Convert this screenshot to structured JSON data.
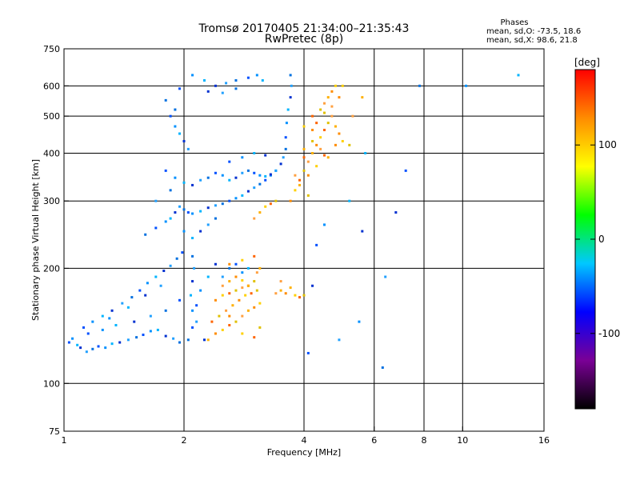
{
  "chart_data": {
    "type": "scatter",
    "title_lines": [
      "Tromsø 20170405 21:34:00–21:35:43",
      "RwPretec (8p)"
    ],
    "stats": {
      "heading": "Phases",
      "line_o": "mean, sd,O:  -73.5, 18.6",
      "line_x": "mean, sd,X:   98.6, 21.8"
    },
    "xlabel": "Frequency [MHz]",
    "ylabel": "Stationary phase Virtual Height [km]",
    "x_scale": "log",
    "y_scale": "log",
    "xlim": [
      1,
      16
    ],
    "ylim": [
      75,
      750
    ],
    "x_ticks": [
      {
        "value": 1,
        "label": "1"
      },
      {
        "value": 2,
        "label": "2"
      },
      {
        "value": 4,
        "label": "4"
      },
      {
        "value": 6,
        "label": "6"
      },
      {
        "value": 8,
        "label": "8"
      },
      {
        "value": 10,
        "label": "10"
      },
      {
        "value": 16,
        "label": "16"
      }
    ],
    "x_gridlines": [
      2,
      4,
      6,
      8,
      10
    ],
    "y_ticks": [
      {
        "value": 75,
        "label": "75"
      },
      {
        "value": 100,
        "label": "100"
      },
      {
        "value": 200,
        "label": "200"
      },
      {
        "value": 300,
        "label": "300"
      },
      {
        "value": 400,
        "label": "400"
      },
      {
        "value": 500,
        "label": "500"
      },
      {
        "value": 600,
        "label": "600"
      },
      {
        "value": 750,
        "label": "750"
      }
    ],
    "y_gridlines": [
      100,
      200,
      300,
      400,
      500,
      600
    ],
    "grid": true,
    "colorbar": {
      "label": "[deg]",
      "range": [
        -180,
        180
      ],
      "ticks": [
        {
          "value": 100,
          "label": "100"
        },
        {
          "value": 0,
          "label": "0"
        },
        {
          "value": -100,
          "label": "-100"
        }
      ],
      "colors": [
        "#000000",
        "#7a0096",
        "#0000ff",
        "#00c8ff",
        "#00ff00",
        "#ffff00",
        "#ff8c00",
        "#ff0000"
      ]
    },
    "series": [
      {
        "phase": "O",
        "points": [
          [
            1.03,
            128
          ],
          [
            1.05,
            131
          ],
          [
            1.08,
            126
          ],
          [
            1.1,
            124
          ],
          [
            1.14,
            121
          ],
          [
            1.18,
            123
          ],
          [
            1.22,
            125
          ],
          [
            1.27,
            124
          ],
          [
            1.32,
            127
          ],
          [
            1.38,
            128
          ],
          [
            1.45,
            130
          ],
          [
            1.52,
            132
          ],
          [
            1.58,
            134
          ],
          [
            1.65,
            137
          ],
          [
            1.72,
            138
          ],
          [
            1.8,
            133
          ],
          [
            1.88,
            131
          ],
          [
            1.95,
            128
          ],
          [
            1.12,
            140
          ],
          [
            1.18,
            145
          ],
          [
            1.25,
            150
          ],
          [
            1.32,
            155
          ],
          [
            1.4,
            162
          ],
          [
            1.48,
            168
          ],
          [
            1.55,
            175
          ],
          [
            1.62,
            183
          ],
          [
            1.7,
            190
          ],
          [
            1.78,
            197
          ],
          [
            1.85,
            203
          ],
          [
            1.92,
            212
          ],
          [
            1.98,
            220
          ],
          [
            1.3,
            148
          ],
          [
            1.45,
            158
          ],
          [
            1.6,
            170
          ],
          [
            1.75,
            180
          ],
          [
            2.05,
            130
          ],
          [
            2.1,
            140
          ],
          [
            2.1,
            155
          ],
          [
            2.08,
            170
          ],
          [
            2.1,
            185
          ],
          [
            2.12,
            200
          ],
          [
            2.1,
            215
          ],
          [
            2.15,
            160
          ],
          [
            2.2,
            175
          ],
          [
            2.3,
            190
          ],
          [
            2.4,
            205
          ],
          [
            2.5,
            190
          ],
          [
            2.6,
            200
          ],
          [
            2.7,
            205
          ],
          [
            2.8,
            195
          ],
          [
            2.9,
            200
          ],
          [
            2.25,
            130
          ],
          [
            2.15,
            145
          ],
          [
            1.6,
            245
          ],
          [
            1.7,
            255
          ],
          [
            1.8,
            265
          ],
          [
            1.85,
            270
          ],
          [
            1.9,
            280
          ],
          [
            1.95,
            290
          ],
          [
            2.0,
            285
          ],
          [
            2.05,
            280
          ],
          [
            2.1,
            278
          ],
          [
            2.2,
            282
          ],
          [
            2.3,
            288
          ],
          [
            2.4,
            292
          ],
          [
            2.5,
            295
          ],
          [
            2.6,
            300
          ],
          [
            2.7,
            305
          ],
          [
            2.8,
            310
          ],
          [
            2.9,
            318
          ],
          [
            3.0,
            325
          ],
          [
            3.1,
            332
          ],
          [
            3.2,
            340
          ],
          [
            3.3,
            350
          ],
          [
            3.4,
            360
          ],
          [
            3.5,
            375
          ],
          [
            3.55,
            390
          ],
          [
            3.6,
            410
          ],
          [
            3.6,
            440
          ],
          [
            3.62,
            480
          ],
          [
            3.65,
            520
          ],
          [
            3.7,
            560
          ],
          [
            3.72,
            600
          ],
          [
            3.7,
            640
          ],
          [
            1.8,
            360
          ],
          [
            1.9,
            345
          ],
          [
            2.0,
            335
          ],
          [
            2.1,
            330
          ],
          [
            2.2,
            340
          ],
          [
            2.3,
            345
          ],
          [
            2.4,
            355
          ],
          [
            2.5,
            350
          ],
          [
            2.6,
            340
          ],
          [
            2.7,
            345
          ],
          [
            2.8,
            355
          ],
          [
            2.9,
            360
          ],
          [
            3.0,
            355
          ],
          [
            3.1,
            350
          ],
          [
            3.2,
            348
          ],
          [
            3.3,
            352
          ],
          [
            3.4,
            360
          ],
          [
            1.8,
            550
          ],
          [
            1.85,
            500
          ],
          [
            1.9,
            470
          ],
          [
            1.95,
            450
          ],
          [
            2.0,
            430
          ],
          [
            2.05,
            410
          ],
          [
            1.9,
            520
          ],
          [
            1.95,
            590
          ],
          [
            2.1,
            640
          ],
          [
            2.25,
            620
          ],
          [
            2.4,
            600
          ],
          [
            2.55,
            610
          ],
          [
            2.7,
            620
          ],
          [
            2.9,
            630
          ],
          [
            3.05,
            640
          ],
          [
            3.15,
            620
          ],
          [
            2.3,
            580
          ],
          [
            2.5,
            575
          ],
          [
            2.7,
            590
          ],
          [
            1.15,
            135
          ],
          [
            1.25,
            138
          ],
          [
            1.35,
            142
          ],
          [
            1.5,
            145
          ],
          [
            1.65,
            150
          ],
          [
            1.8,
            155
          ],
          [
            1.95,
            165
          ],
          [
            2.0,
            250
          ],
          [
            2.1,
            240
          ],
          [
            2.2,
            250
          ],
          [
            2.3,
            260
          ],
          [
            2.4,
            270
          ],
          [
            2.6,
            380
          ],
          [
            2.8,
            390
          ],
          [
            3.0,
            400
          ],
          [
            3.2,
            395
          ],
          [
            1.7,
            300
          ],
          [
            1.85,
            320
          ],
          [
            4.3,
            230
          ],
          [
            4.5,
            260
          ],
          [
            5.2,
            300
          ],
          [
            5.6,
            250
          ],
          [
            6.4,
            190
          ],
          [
            7.8,
            600
          ],
          [
            7.2,
            360
          ],
          [
            10.2,
            600
          ],
          [
            13.8,
            640
          ],
          [
            4.2,
            180
          ],
          [
            4.9,
            130
          ],
          [
            6.3,
            110
          ],
          [
            4.1,
            120
          ],
          [
            5.5,
            145
          ],
          [
            5.7,
            400
          ],
          [
            6.8,
            280
          ]
        ]
      },
      {
        "phase": "X",
        "points": [
          [
            2.3,
            130
          ],
          [
            2.4,
            135
          ],
          [
            2.5,
            138
          ],
          [
            2.6,
            142
          ],
          [
            2.7,
            145
          ],
          [
            2.8,
            150
          ],
          [
            2.9,
            155
          ],
          [
            3.0,
            158
          ],
          [
            3.1,
            162
          ],
          [
            2.35,
            145
          ],
          [
            2.45,
            150
          ],
          [
            2.55,
            155
          ],
          [
            2.65,
            160
          ],
          [
            2.75,
            165
          ],
          [
            2.85,
            170
          ],
          [
            2.95,
            172
          ],
          [
            3.05,
            175
          ],
          [
            2.5,
            180
          ],
          [
            2.6,
            185
          ],
          [
            2.7,
            190
          ],
          [
            2.8,
            186
          ],
          [
            2.9,
            180
          ],
          [
            3.0,
            185
          ],
          [
            3.05,
            195
          ],
          [
            3.1,
            200
          ],
          [
            2.4,
            165
          ],
          [
            2.5,
            170
          ],
          [
            2.6,
            172
          ],
          [
            2.7,
            175
          ],
          [
            2.8,
            178
          ],
          [
            2.9,
            180
          ],
          [
            2.6,
            150
          ],
          [
            2.8,
            135
          ],
          [
            3.0,
            132
          ],
          [
            3.1,
            140
          ],
          [
            3.4,
            172
          ],
          [
            3.5,
            175
          ],
          [
            3.6,
            172
          ],
          [
            3.8,
            170
          ],
          [
            3.9,
            168
          ],
          [
            4.0,
            170
          ],
          [
            3.5,
            185
          ],
          [
            3.7,
            178
          ],
          [
            3.7,
            300
          ],
          [
            3.8,
            320
          ],
          [
            3.9,
            340
          ],
          [
            4.0,
            360
          ],
          [
            4.1,
            380
          ],
          [
            4.2,
            400
          ],
          [
            4.3,
            420
          ],
          [
            4.4,
            440
          ],
          [
            4.5,
            460
          ],
          [
            4.6,
            480
          ],
          [
            4.7,
            500
          ],
          [
            4.8,
            470
          ],
          [
            4.9,
            450
          ],
          [
            5.0,
            430
          ],
          [
            4.0,
            390
          ],
          [
            4.2,
            430
          ],
          [
            4.4,
            410
          ],
          [
            4.6,
            390
          ],
          [
            4.8,
            420
          ],
          [
            4.0,
            470
          ],
          [
            4.2,
            500
          ],
          [
            4.4,
            520
          ],
          [
            4.5,
            540
          ],
          [
            4.6,
            560
          ],
          [
            4.7,
            580
          ],
          [
            4.8,
            600
          ],
          [
            4.3,
            480
          ],
          [
            4.5,
            510
          ],
          [
            4.7,
            530
          ],
          [
            3.9,
            330
          ],
          [
            4.1,
            350
          ],
          [
            4.3,
            370
          ],
          [
            4.5,
            395
          ],
          [
            4.1,
            310
          ],
          [
            3.8,
            350
          ],
          [
            4.0,
            410
          ],
          [
            4.2,
            460
          ],
          [
            3.2,
            290
          ],
          [
            3.3,
            295
          ],
          [
            3.4,
            300
          ],
          [
            3.0,
            270
          ],
          [
            3.1,
            280
          ],
          [
            2.6,
            205
          ],
          [
            2.8,
            210
          ],
          [
            3.0,
            215
          ],
          [
            5.2,
            420
          ],
          [
            5.3,
            500
          ],
          [
            5.6,
            560
          ],
          [
            4.9,
            560
          ],
          [
            5.0,
            600
          ]
        ]
      }
    ]
  }
}
